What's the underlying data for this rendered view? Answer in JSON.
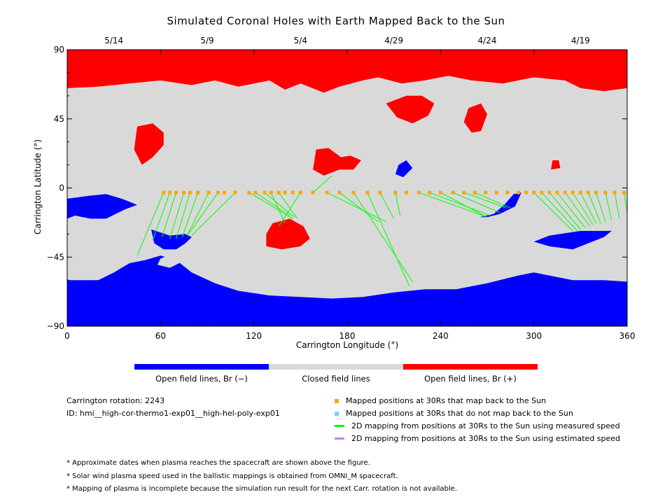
{
  "chart_data": {
    "type": "map",
    "title": "Simulated Coronal Holes with Earth Mapped Back to the Sun",
    "xlabel": "Carrington Longitude (°)",
    "ylabel": "Carrington Latitude (°)",
    "xlim": [
      0,
      360
    ],
    "ylim": [
      -90,
      90
    ],
    "xticks": [
      0,
      60,
      120,
      180,
      240,
      300,
      360
    ],
    "yticks": [
      -90,
      -45,
      0,
      45,
      90
    ],
    "date_ticks": [
      {
        "label": "5/14",
        "lon": 30
      },
      {
        "label": "5/9",
        "lon": 90
      },
      {
        "label": "5/4",
        "lon": 150
      },
      {
        "label": "4/29",
        "lon": 210
      },
      {
        "label": "4/24",
        "lon": 270
      },
      {
        "label": "4/19",
        "lon": 330
      }
    ],
    "colorbar": [
      {
        "label": "Open field lines, Br (−)",
        "color": "#0000ff"
      },
      {
        "label": "Closed field lines",
        "color": "#d9d9d9"
      },
      {
        "label": "Open field lines, Br (+)",
        "color": "#ff0000"
      }
    ],
    "regions": [
      {
        "polarity": "positive",
        "color": "#ff0000",
        "lonlat": [
          [
            0,
            90
          ],
          [
            360,
            90
          ],
          [
            360,
            65
          ],
          [
            345,
            63
          ],
          [
            330,
            65
          ],
          [
            320,
            70
          ],
          [
            300,
            72
          ],
          [
            280,
            68
          ],
          [
            260,
            70
          ],
          [
            245,
            73
          ],
          [
            230,
            70
          ],
          [
            215,
            68
          ],
          [
            200,
            72
          ],
          [
            190,
            70
          ],
          [
            175,
            66
          ],
          [
            165,
            62
          ],
          [
            150,
            68
          ],
          [
            140,
            64
          ],
          [
            130,
            70
          ],
          [
            110,
            66
          ],
          [
            95,
            70
          ],
          [
            80,
            67
          ],
          [
            60,
            70
          ],
          [
            40,
            68
          ],
          [
            20,
            66
          ],
          [
            0,
            65
          ]
        ]
      },
      {
        "polarity": "negative",
        "color": "#0000ff",
        "lonlat": [
          [
            0,
            -90
          ],
          [
            360,
            -90
          ],
          [
            360,
            -61
          ],
          [
            345,
            -60
          ],
          [
            325,
            -60
          ],
          [
            310,
            -57
          ],
          [
            300,
            -55
          ],
          [
            290,
            -57
          ],
          [
            270,
            -62
          ],
          [
            250,
            -66
          ],
          [
            230,
            -66
          ],
          [
            210,
            -68
          ],
          [
            190,
            -71
          ],
          [
            170,
            -72
          ],
          [
            150,
            -71
          ],
          [
            130,
            -70
          ],
          [
            110,
            -67
          ],
          [
            95,
            -62
          ],
          [
            80,
            -55
          ],
          [
            70,
            -47
          ],
          [
            60,
            -44
          ],
          [
            50,
            -47
          ],
          [
            40,
            -49
          ],
          [
            30,
            -55
          ],
          [
            20,
            -60
          ],
          [
            0,
            -60
          ]
        ]
      },
      {
        "polarity": "negative",
        "color": "#0000ff",
        "lonlat": [
          [
            350,
            -28
          ],
          [
            345,
            -32
          ],
          [
            335,
            -36
          ],
          [
            325,
            -40
          ],
          [
            310,
            -38
          ],
          [
            300,
            -35
          ],
          [
            310,
            -31
          ],
          [
            330,
            -28
          ]
        ]
      },
      {
        "polarity": "negative",
        "color": "#0000ff",
        "lonlat": [
          [
            0,
            -7
          ],
          [
            15,
            -5
          ],
          [
            25,
            -4
          ],
          [
            35,
            -7
          ],
          [
            45,
            -11
          ],
          [
            37,
            -14
          ],
          [
            25,
            -20
          ],
          [
            15,
            -20
          ],
          [
            5,
            -18
          ],
          [
            0,
            -20
          ]
        ]
      },
      {
        "polarity": "negative",
        "color": "#0000ff",
        "lonlat": [
          [
            270,
            -19
          ],
          [
            278,
            -17
          ],
          [
            288,
            -12
          ],
          [
            292,
            -3
          ],
          [
            287,
            -4
          ],
          [
            281,
            -11
          ],
          [
            274,
            -17
          ],
          [
            265,
            -19
          ]
        ]
      },
      {
        "polarity": "negative",
        "color": "#0000ff",
        "lonlat": [
          [
            54,
            -27
          ],
          [
            66,
            -31
          ],
          [
            76,
            -30
          ],
          [
            80,
            -32
          ],
          [
            76,
            -36
          ],
          [
            70,
            -40
          ],
          [
            62,
            -40
          ],
          [
            56,
            -36
          ]
        ]
      },
      {
        "polarity": "negative",
        "color": "#0000ff",
        "lonlat": [
          [
            213,
            15
          ],
          [
            218,
            18
          ],
          [
            222,
            13
          ],
          [
            216,
            7
          ],
          [
            211,
            9
          ]
        ]
      },
      {
        "polarity": "positive",
        "color": "#ff0000",
        "lonlat": [
          [
            160,
            25
          ],
          [
            168,
            26
          ],
          [
            176,
            20
          ],
          [
            182,
            21
          ],
          [
            189,
            18
          ],
          [
            184,
            12
          ],
          [
            175,
            12
          ],
          [
            165,
            8
          ],
          [
            158,
            12
          ]
        ]
      },
      {
        "polarity": "positive",
        "color": "#ff0000",
        "lonlat": [
          [
            205,
            55
          ],
          [
            218,
            60
          ],
          [
            228,
            60
          ],
          [
            236,
            55
          ],
          [
            232,
            47
          ],
          [
            222,
            42
          ],
          [
            212,
            46
          ]
        ]
      },
      {
        "polarity": "positive",
        "color": "#ff0000",
        "lonlat": [
          [
            258,
            52
          ],
          [
            266,
            55
          ],
          [
            270,
            48
          ],
          [
            266,
            37
          ],
          [
            260,
            36
          ],
          [
            255,
            43
          ]
        ]
      },
      {
        "polarity": "positive",
        "color": "#ff0000",
        "lonlat": [
          [
            45,
            40
          ],
          [
            55,
            42
          ],
          [
            62,
            36
          ],
          [
            62,
            28
          ],
          [
            55,
            20
          ],
          [
            48,
            15
          ],
          [
            43,
            25
          ]
        ]
      },
      {
        "polarity": "positive",
        "color": "#ff0000",
        "lonlat": [
          [
            132,
            -23
          ],
          [
            143,
            -20
          ],
          [
            152,
            -25
          ],
          [
            156,
            -33
          ],
          [
            150,
            -38
          ],
          [
            138,
            -40
          ],
          [
            128,
            -38
          ],
          [
            128,
            -30
          ]
        ]
      },
      {
        "polarity": "positive",
        "color": "#ff0000",
        "lonlat": [
          [
            312,
            18
          ],
          [
            316,
            18
          ],
          [
            317,
            13
          ],
          [
            311,
            12
          ]
        ]
      }
    ],
    "closed_islands": [
      {
        "lonlat": [
          [
            315,
            -43
          ],
          [
            325,
            -40
          ],
          [
            338,
            -43
          ],
          [
            332,
            -50
          ],
          [
            318,
            -52
          ]
        ]
      },
      {
        "lonlat": [
          [
            295,
            -43
          ],
          [
            302,
            -43
          ],
          [
            305,
            -48
          ],
          [
            297,
            -50
          ],
          [
            290,
            -48
          ]
        ]
      },
      {
        "lonlat": [
          [
            60,
            -46
          ],
          [
            70,
            -42
          ],
          [
            74,
            -48
          ],
          [
            66,
            -52
          ],
          [
            58,
            -50
          ]
        ]
      }
    ],
    "mapped_positions_lon": [
      62,
      66,
      70,
      75,
      79,
      84,
      91,
      97,
      101,
      108,
      117,
      121,
      127,
      131,
      136,
      140,
      145,
      150,
      158,
      167,
      175,
      184,
      193,
      201,
      211,
      218,
      226,
      233,
      240,
      248,
      255,
      262,
      269,
      276,
      283,
      290,
      295,
      300,
      305,
      310,
      315,
      320,
      325,
      330,
      335,
      340,
      346,
      352,
      358
    ],
    "mapped_positions_lat": -3,
    "mapping_lines": [
      [
        [
          62,
          -3
        ],
        [
          45,
          -44
        ]
      ],
      [
        [
          66,
          -3
        ],
        [
          55,
          -34
        ]
      ],
      [
        [
          70,
          -3
        ],
        [
          61,
          -32
        ]
      ],
      [
        [
          75,
          -3
        ],
        [
          66,
          -33
        ]
      ],
      [
        [
          79,
          -3
        ],
        [
          70,
          -33
        ]
      ],
      [
        [
          84,
          -3
        ],
        [
          74,
          -32
        ]
      ],
      [
        [
          91,
          -3
        ],
        [
          77,
          -31
        ]
      ],
      [
        [
          97,
          -3
        ],
        [
          78,
          -30
        ]
      ],
      [
        [
          108,
          -3
        ],
        [
          80,
          -31
        ]
      ],
      [
        [
          117,
          -3
        ],
        [
          145,
          -20
        ]
      ],
      [
        [
          121,
          -3
        ],
        [
          143,
          -18
        ]
      ],
      [
        [
          127,
          -3
        ],
        [
          146,
          -19
        ]
      ],
      [
        [
          131,
          -3
        ],
        [
          140,
          -23
        ]
      ],
      [
        [
          136,
          -3
        ],
        [
          148,
          -20
        ]
      ],
      [
        [
          150,
          -3
        ],
        [
          136,
          -25
        ]
      ],
      [
        [
          158,
          -3
        ],
        [
          170,
          8
        ]
      ],
      [
        [
          167,
          -3
        ],
        [
          205,
          -22
        ]
      ],
      [
        [
          175,
          -3
        ],
        [
          200,
          -22
        ]
      ],
      [
        [
          184,
          -3
        ],
        [
          222,
          -61
        ]
      ],
      [
        [
          193,
          -3
        ],
        [
          220,
          -64
        ]
      ],
      [
        [
          201,
          -3
        ],
        [
          210,
          -20
        ]
      ],
      [
        [
          211,
          -3
        ],
        [
          214,
          -18
        ]
      ],
      [
        [
          226,
          -3
        ],
        [
          270,
          -19
        ]
      ],
      [
        [
          233,
          -3
        ],
        [
          272,
          -18
        ]
      ],
      [
        [
          240,
          -3
        ],
        [
          268,
          -18
        ]
      ],
      [
        [
          248,
          -3
        ],
        [
          278,
          -16
        ]
      ],
      [
        [
          255,
          -3
        ],
        [
          282,
          -13
        ]
      ],
      [
        [
          262,
          -3
        ],
        [
          285,
          -13
        ]
      ],
      [
        [
          300,
          -3
        ],
        [
          325,
          -28
        ]
      ],
      [
        [
          305,
          -3
        ],
        [
          328,
          -28
        ]
      ],
      [
        [
          310,
          -3
        ],
        [
          330,
          -27
        ]
      ],
      [
        [
          315,
          -3
        ],
        [
          333,
          -26
        ]
      ],
      [
        [
          320,
          -3
        ],
        [
          336,
          -25
        ]
      ],
      [
        [
          325,
          -3
        ],
        [
          338,
          -24
        ]
      ],
      [
        [
          330,
          -3
        ],
        [
          340,
          -23
        ]
      ],
      [
        [
          335,
          -3
        ],
        [
          343,
          -23
        ]
      ],
      [
        [
          340,
          -3
        ],
        [
          346,
          -22
        ]
      ],
      [
        [
          346,
          -3
        ],
        [
          350,
          -21
        ]
      ],
      [
        [
          352,
          -3
        ],
        [
          355,
          -20
        ]
      ],
      [
        [
          358,
          -3
        ],
        [
          360,
          -16
        ]
      ]
    ],
    "meta": {
      "rotation": "Carrington rotation: 2243",
      "id": "ID: hmi__high-cor-thermo1-exp01__high-hel-poly-exp01"
    },
    "key": [
      {
        "label": "Mapped positions at 30Rs that map back to the Sun",
        "color": "#ffa500",
        "kind": "square"
      },
      {
        "label": "Mapped positions at 30Rs that do not map back to the Sun",
        "color": "#87cefa",
        "kind": "square"
      },
      {
        "label": "2D mapping from positions at 30Rs to the Sun using measured speed",
        "color": "#00ff00",
        "kind": "line"
      },
      {
        "label": "2D mapping from positions at 30Rs to the Sun using estimated speed",
        "color": "#c080ff",
        "kind": "line"
      }
    ],
    "notes": [
      "* Approximate dates when plasma reaches the spacecraft are shown above the figure.",
      "* Solar wind plasma speed used in the ballistic mappings is obtained from OMNI_M spacecraft.",
      "* Mapping of plasma is incomplete because the simulation run result for the next Carr. rotation is not available."
    ]
  }
}
